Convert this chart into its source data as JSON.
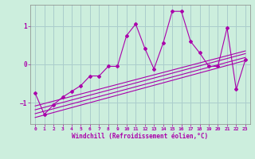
{
  "xlabel": "Windchill (Refroidissement éolien,°C)",
  "bg_color": "#cceedd",
  "grid_color": "#aacccc",
  "line_color": "#aa00aa",
  "xlim": [
    -0.5,
    23.5
  ],
  "ylim": [
    -1.55,
    1.55
  ],
  "yticks": [
    -1,
    0,
    1
  ],
  "xticks": [
    0,
    1,
    2,
    3,
    4,
    5,
    6,
    7,
    8,
    9,
    10,
    11,
    12,
    13,
    14,
    15,
    16,
    17,
    18,
    19,
    20,
    21,
    22,
    23
  ],
  "zigzag_x": [
    0,
    1,
    2,
    3,
    4,
    5,
    6,
    7,
    8,
    9,
    10,
    11,
    12,
    13,
    14,
    15,
    16,
    17,
    18,
    19,
    20,
    21,
    22,
    23
  ],
  "zigzag_y": [
    -0.75,
    -1.3,
    -1.05,
    -0.85,
    -0.7,
    -0.55,
    -0.3,
    -0.3,
    -0.05,
    -0.05,
    0.75,
    1.05,
    0.42,
    -0.12,
    0.55,
    1.38,
    1.38,
    0.6,
    0.3,
    -0.05,
    -0.05,
    0.95,
    -0.65,
    0.12
  ],
  "line1_x": [
    0,
    23
  ],
  "line1_y": [
    -1.38,
    0.1
  ],
  "line2_x": [
    0,
    23
  ],
  "line2_y": [
    -1.28,
    0.18
  ],
  "line3_x": [
    0,
    23
  ],
  "line3_y": [
    -1.18,
    0.28
  ],
  "line4_x": [
    0,
    23
  ],
  "line4_y": [
    -1.08,
    0.35
  ]
}
